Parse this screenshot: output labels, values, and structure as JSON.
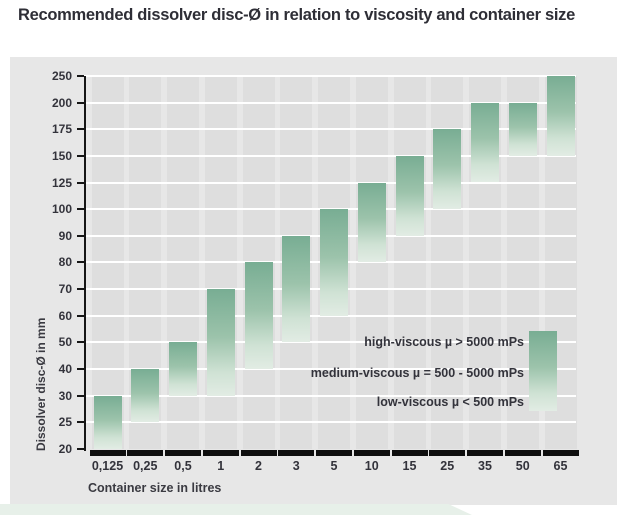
{
  "title": "Recommended dissolver disc-Ø in relation to viscosity and container size",
  "chart_data": {
    "type": "bar",
    "subtype": "floating-range-bars",
    "title": "Recommended dissolver disc-Ø in relation to viscosity and container size",
    "xlabel": "Container size in litres",
    "ylabel": "Dissolver disc-Ø in mm",
    "categories": [
      "0,125",
      "0,25",
      "0,5",
      "1",
      "2",
      "3",
      "5",
      "10",
      "15",
      "25",
      "35",
      "50",
      "65"
    ],
    "y_ticks": [
      20,
      25,
      30,
      40,
      50,
      60,
      70,
      80,
      90,
      100,
      125,
      150,
      175,
      200,
      250
    ],
    "y_scale": "non-linear, equal spacing per tick",
    "grid": true,
    "bars": [
      {
        "container": "0,125",
        "disc_min": 20,
        "disc_max": 30
      },
      {
        "container": "0,25",
        "disc_min": 25,
        "disc_max": 40
      },
      {
        "container": "0,5",
        "disc_min": 30,
        "disc_max": 50
      },
      {
        "container": "1",
        "disc_min": 30,
        "disc_max": 70
      },
      {
        "container": "2",
        "disc_min": 40,
        "disc_max": 80
      },
      {
        "container": "3",
        "disc_min": 50,
        "disc_max": 90
      },
      {
        "container": "5",
        "disc_min": 60,
        "disc_max": 100
      },
      {
        "container": "10",
        "disc_min": 80,
        "disc_max": 125
      },
      {
        "container": "15",
        "disc_min": 90,
        "disc_max": 150
      },
      {
        "container": "25",
        "disc_min": 100,
        "disc_max": 175
      },
      {
        "container": "35",
        "disc_min": 125,
        "disc_max": 200
      },
      {
        "container": "50",
        "disc_min": 150,
        "disc_max": 200
      },
      {
        "container": "65",
        "disc_min": 150,
        "disc_max": 250
      }
    ],
    "legend": [
      "high-viscous µ > 5000 mPs",
      "medium-viscous µ = 500 - 5000 mPs",
      "low-viscous µ < 500 mPs"
    ],
    "legend_position": "inside lower right",
    "colors": {
      "bar_gradient_top": "#78ad93",
      "bar_gradient_bottom": "#e2ece4",
      "panel_background": "#e7e7e7",
      "column_stripe": "#dedede",
      "gridline": "#ffffff",
      "axis": "#161616",
      "text": "#33333b",
      "bottom_strip": "#e7f0e9"
    }
  }
}
